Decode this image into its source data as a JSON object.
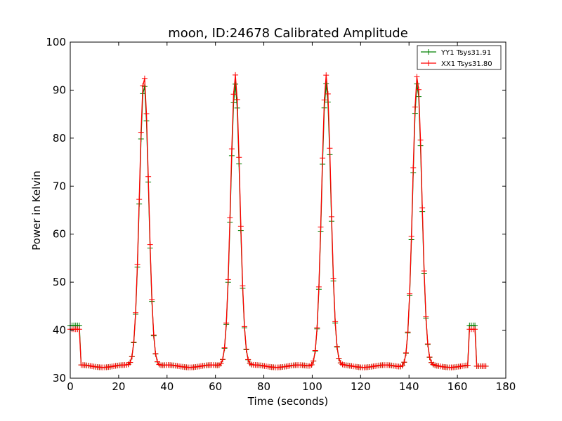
{
  "chart_data": {
    "type": "line",
    "title": "moon, ID:24678 Calibrated Amplitude",
    "xlabel": "Time (seconds)",
    "ylabel": "Power in Kelvin",
    "xlim": [
      0,
      180
    ],
    "ylim": [
      30,
      100
    ],
    "xticks": [
      "0",
      "20",
      "40",
      "60",
      "80",
      "100",
      "120",
      "140",
      "160",
      "180"
    ],
    "yticks": [
      "30",
      "40",
      "50",
      "60",
      "70",
      "80",
      "90",
      "100"
    ],
    "grid": false,
    "legend_position": "top-right",
    "marker": "+",
    "series": [
      {
        "name": "YY1 Tsys31.91",
        "color": "#008000",
        "baseline": 32.5,
        "peaks": [
          [
            30.5,
            91.5
          ],
          [
            68.2,
            91.5
          ],
          [
            105.8,
            91.5
          ],
          [
            143.4,
            91.5
          ]
        ],
        "peak_width": 1.9,
        "segments": [
          {
            "x": [
              0,
              4
            ],
            "y": [
              41,
              41
            ]
          },
          {
            "x": [
              4,
              165
            ],
            "y": null
          },
          {
            "x": [
              165,
              168
            ],
            "y": [
              41,
              41
            ]
          },
          {
            "x": [
              168,
              172
            ],
            "y": [
              32.5,
              32.5
            ]
          }
        ],
        "x_range": [
          0,
          172
        ],
        "step": 0.75
      },
      {
        "name": "XX1 Tsys31.80",
        "color": "#ff0000",
        "baseline": 32.5,
        "peaks": [
          [
            30.5,
            93.2
          ],
          [
            68.2,
            93.4
          ],
          [
            105.8,
            93.3
          ],
          [
            143.4,
            93.0
          ]
        ],
        "peak_width": 1.9,
        "segments": [
          {
            "x": [
              0,
              4
            ],
            "y": [
              40.2,
              40.2
            ]
          },
          {
            "x": [
              4,
              165
            ],
            "y": null
          },
          {
            "x": [
              165,
              168
            ],
            "y": [
              40.2,
              40.2
            ]
          },
          {
            "x": [
              168,
              172
            ],
            "y": [
              32.5,
              32.5
            ]
          }
        ],
        "x_range": [
          0,
          172
        ],
        "step": 0.75
      }
    ]
  }
}
